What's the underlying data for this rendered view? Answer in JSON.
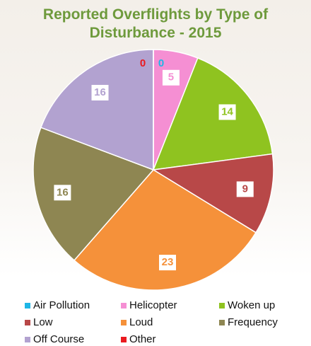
{
  "chart_data": {
    "type": "pie",
    "title": "Reported Overflights by Type of Disturbance - 2015",
    "categories": [
      "Air Pollution",
      "Helicopter",
      "Woken up",
      "Low",
      "Loud",
      "Frequency",
      "Off Course",
      "Other"
    ],
    "values": [
      0,
      5,
      14,
      9,
      23,
      16,
      16,
      0
    ],
    "colors": [
      "#1eb6e6",
      "#f58fd3",
      "#8fc320",
      "#b84848",
      "#f5913a",
      "#8e8652",
      "#b2a2d0",
      "#ea1a1f"
    ]
  }
}
